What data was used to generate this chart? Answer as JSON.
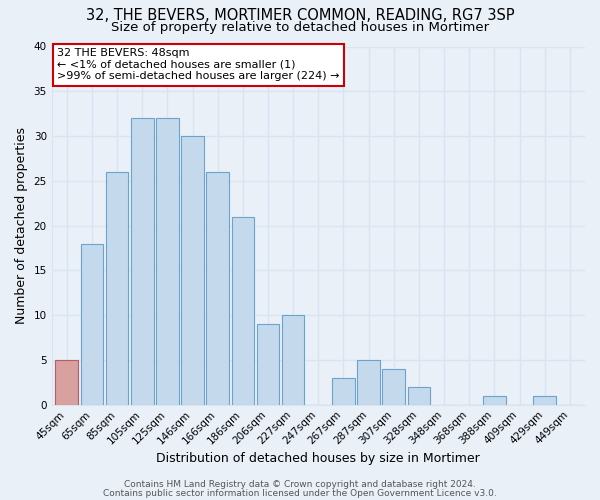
{
  "title": "32, THE BEVERS, MORTIMER COMMON, READING, RG7 3SP",
  "subtitle": "Size of property relative to detached houses in Mortimer",
  "xlabel": "Distribution of detached houses by size in Mortimer",
  "ylabel": "Number of detached properties",
  "bar_labels": [
    "45sqm",
    "65sqm",
    "85sqm",
    "105sqm",
    "125sqm",
    "146sqm",
    "166sqm",
    "186sqm",
    "206sqm",
    "227sqm",
    "247sqm",
    "267sqm",
    "287sqm",
    "307sqm",
    "328sqm",
    "348sqm",
    "368sqm",
    "388sqm",
    "409sqm",
    "429sqm",
    "449sqm"
  ],
  "bar_values": [
    5,
    18,
    26,
    32,
    32,
    30,
    26,
    21,
    9,
    10,
    0,
    3,
    5,
    4,
    2,
    0,
    0,
    1,
    0,
    1,
    0
  ],
  "bar_color": "#c5d9ed",
  "bar_edge_color": "#6aa3cc",
  "highlight_bar_index": 0,
  "highlight_color": "#d9a0a0",
  "highlight_edge_color": "#b06060",
  "ylim": [
    0,
    40
  ],
  "yticks": [
    0,
    5,
    10,
    15,
    20,
    25,
    30,
    35,
    40
  ],
  "annotation_line1": "32 THE BEVERS: 48sqm",
  "annotation_line2": "← <1% of detached houses are smaller (1)",
  "annotation_line3": ">99% of semi-detached houses are larger (224) →",
  "annotation_box_color": "#ffffff",
  "annotation_border_color": "#cc0000",
  "footer_line1": "Contains HM Land Registry data © Crown copyright and database right 2024.",
  "footer_line2": "Contains public sector information licensed under the Open Government Licence v3.0.",
  "background_color": "#eaf0f8",
  "grid_color": "#d8e4f0",
  "title_fontsize": 10.5,
  "subtitle_fontsize": 9.5,
  "axis_label_fontsize": 9,
  "tick_fontsize": 7.5,
  "footer_fontsize": 6.5,
  "annotation_fontsize": 8
}
